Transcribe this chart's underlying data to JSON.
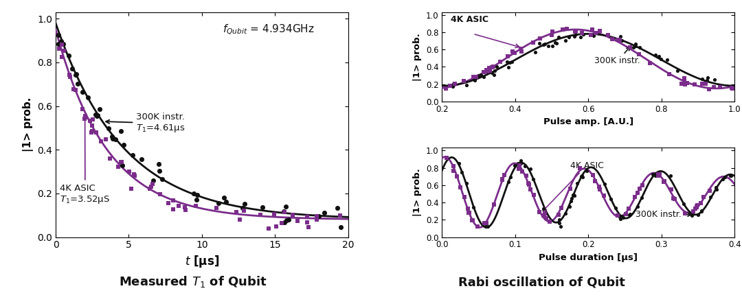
{
  "black_color": "#111111",
  "purple_color": "#7b2d8b",
  "t1_300k": 4.61,
  "t1_4k": 3.52,
  "t1_xlim": [
    0,
    20
  ],
  "t1_ylim": [
    0,
    1.05
  ],
  "pulse_amp_xlim": [
    0.2,
    1.0
  ],
  "pulse_amp_ylim": [
    0,
    1.05
  ],
  "pulse_dur_xlim": [
    0,
    0.4
  ],
  "pulse_dur_ylim": [
    0,
    1.05
  ],
  "t1_xticks": [
    0,
    5,
    10,
    15,
    20
  ],
  "t1_yticks": [
    0,
    0.2,
    0.4,
    0.6,
    0.8,
    1.0
  ],
  "amp_xticks": [
    0.2,
    0.4,
    0.6,
    0.8,
    1.0
  ],
  "amp_yticks": [
    0,
    0.2,
    0.4,
    0.6,
    0.8,
    1.0
  ],
  "dur_xticks": [
    0,
    0.1,
    0.2,
    0.3,
    0.4
  ],
  "dur_yticks": [
    0,
    0.2,
    0.4,
    0.6,
    0.8,
    1.0
  ]
}
